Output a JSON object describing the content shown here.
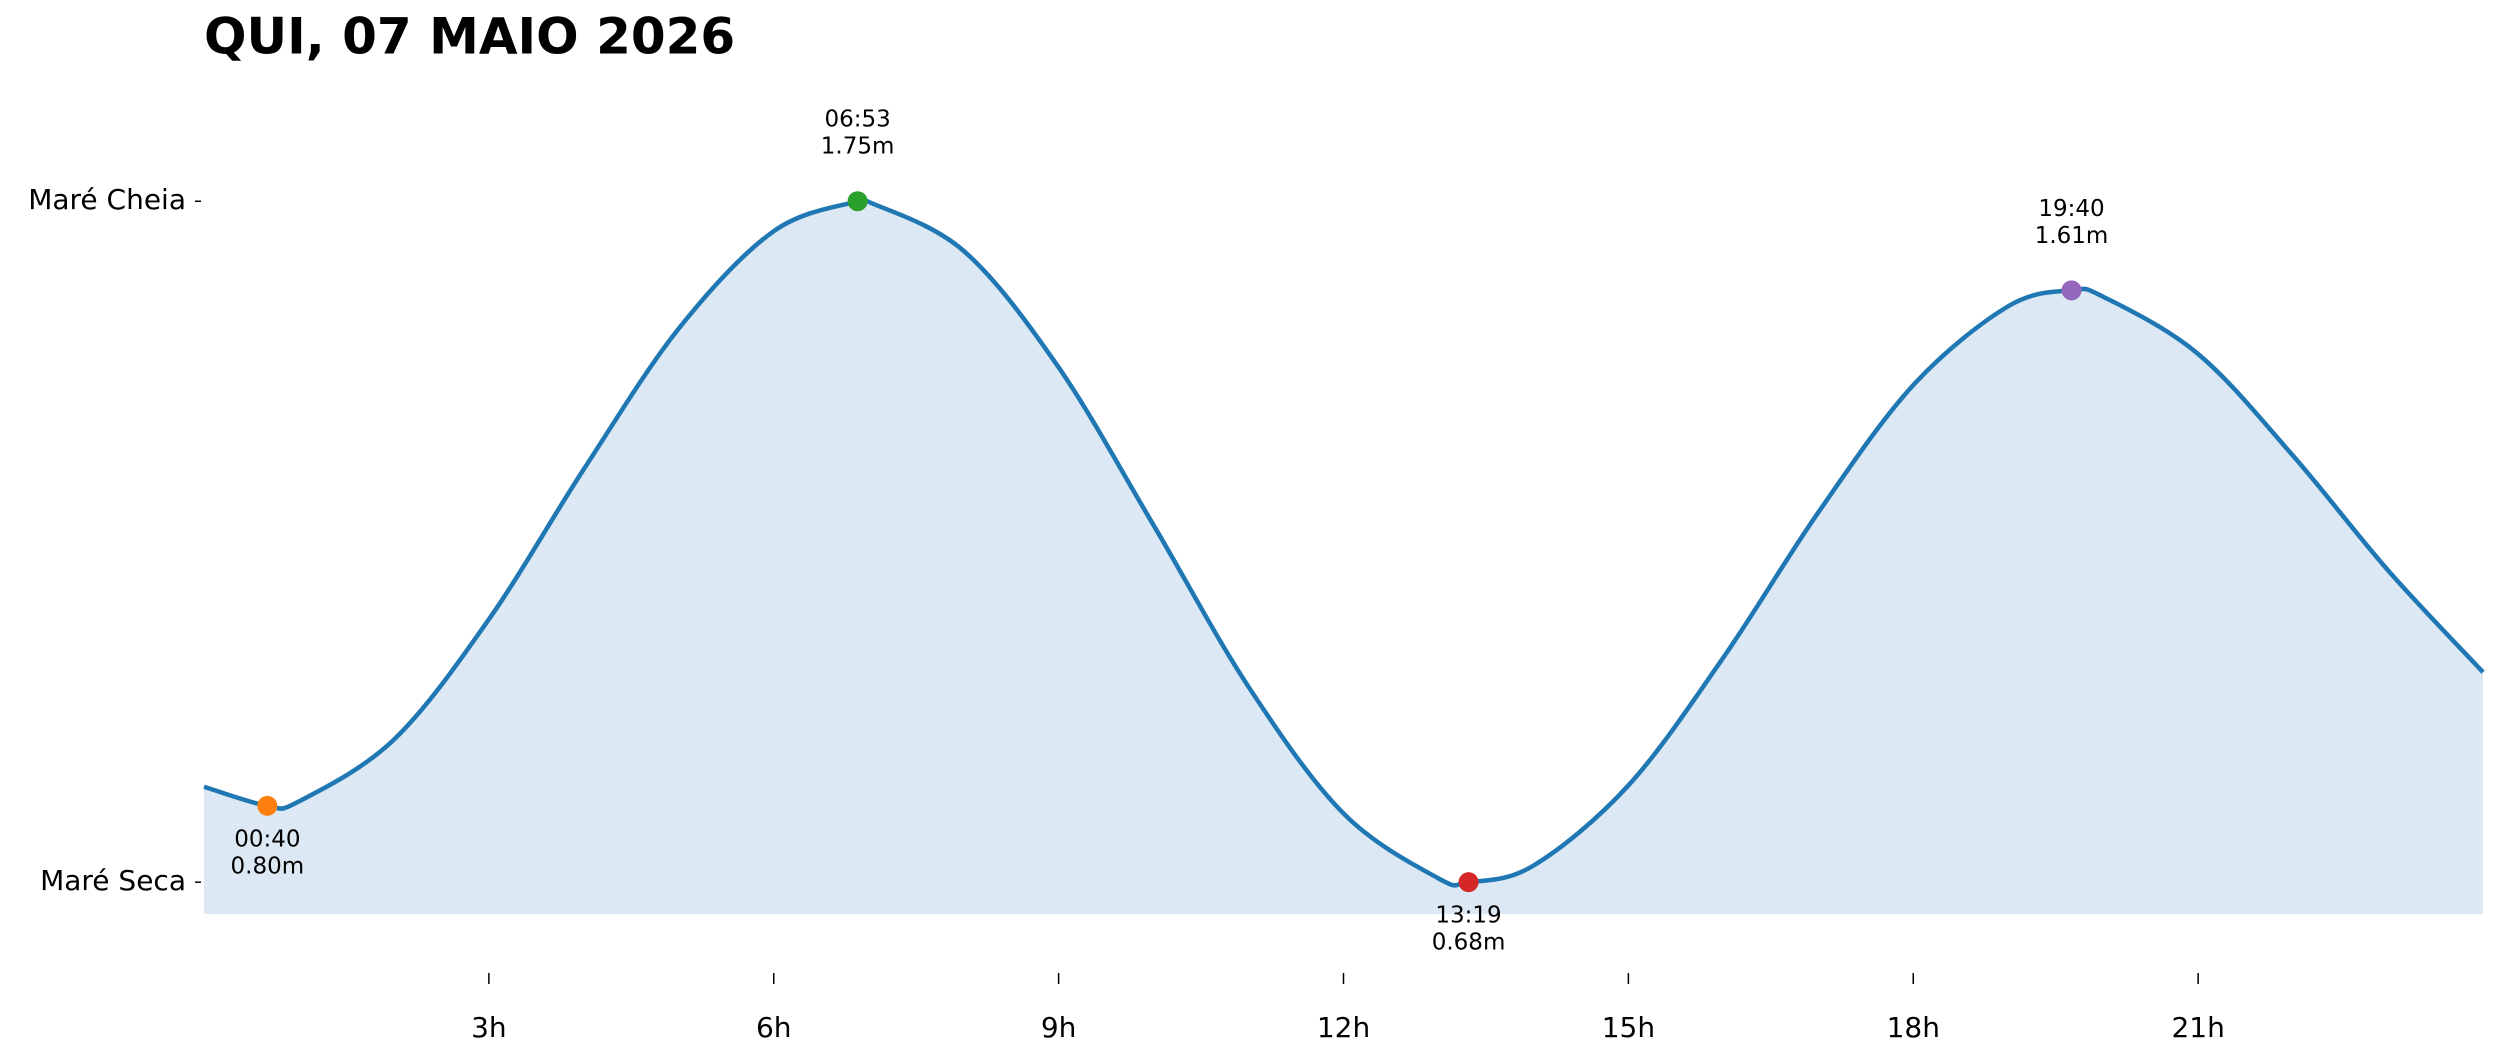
{
  "chart_data": {
    "type": "line",
    "title": "QUI, 07 MAIO 2026",
    "x": [
      0,
      0.667,
      1,
      2,
      3,
      4,
      5,
      6,
      6.883,
      7,
      8,
      9,
      10,
      11,
      12,
      13,
      13.317,
      14,
      15,
      16,
      17,
      18,
      19,
      19.667,
      20,
      21,
      22,
      23,
      24
    ],
    "values": [
      0.83,
      0.8,
      0.807,
      0.904,
      1.093,
      1.329,
      1.55,
      1.703,
      1.75,
      1.749,
      1.672,
      1.489,
      1.241,
      0.987,
      0.788,
      0.686,
      0.68,
      0.706,
      0.832,
      1.033,
      1.261,
      1.461,
      1.585,
      1.61,
      1.6,
      1.51,
      1.35,
      1.17,
      1.01
    ],
    "color": "#1f77b4",
    "fill_color": "#dce8f3",
    "extremes": {
      "x": [
        0.667,
        6.883,
        13.317,
        19.667
      ],
      "values": [
        0.8,
        1.75,
        0.68,
        1.61
      ],
      "value_labels": [
        "0.80m",
        "1.75m",
        "0.68m",
        "1.61m"
      ],
      "time_labels": [
        "00:40",
        "06:53",
        "13:19",
        "19:40"
      ],
      "colors": [
        "#ff7f0e",
        "#2ca02c",
        "#d62728",
        "#9467bd"
      ]
    },
    "xlim": [
      0,
      24
    ],
    "xticks": [
      {
        "value": 3,
        "label": "3h"
      },
      {
        "value": 6,
        "label": "6h"
      },
      {
        "value": 9,
        "label": "9h"
      },
      {
        "value": 12,
        "label": "12h"
      },
      {
        "value": 15,
        "label": "15h"
      },
      {
        "value": 18,
        "label": "18h"
      },
      {
        "value": 21,
        "label": "21h"
      }
    ],
    "ylim": [
      0.63,
      1.85
    ],
    "yticks": [
      {
        "value": 0.68,
        "label": "Maré Seca"
      },
      {
        "value": 1.75,
        "label": "Maré Cheia"
      }
    ]
  }
}
